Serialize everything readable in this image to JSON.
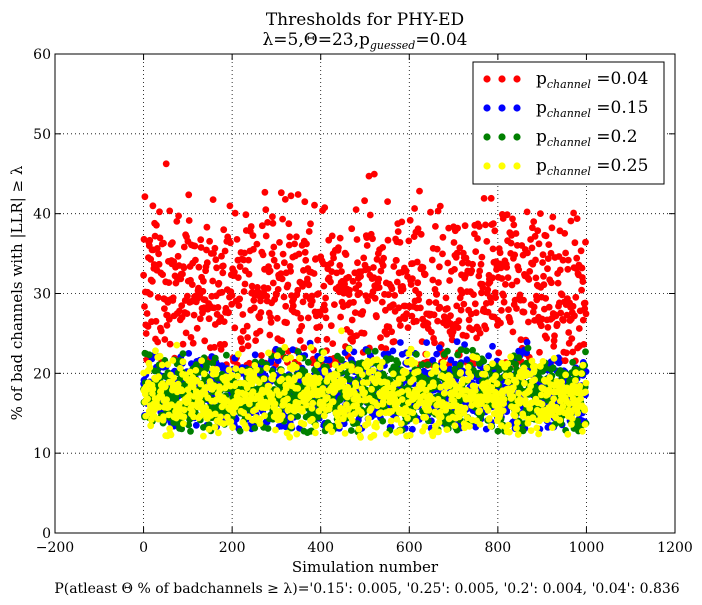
{
  "chart_data": {
    "type": "scatter",
    "title": "Thresholds for PHY-ED",
    "subtitle": "λ=5,Θ=23,p_guessed=0.04",
    "subtitle_parts": {
      "lead": "λ=5,Θ=23,p",
      "sub": "guessed",
      "tail": "=0.04"
    },
    "xlabel": "Simulation number",
    "ylabel": "% of bad channels with |LLR| ≥ λ",
    "footnote": "P(atleast Θ % of badchannels ≥ λ)='0.15': 0.005, '0.25': 0.005, '0.2': 0.004, '0.04': 0.836",
    "xlim": [
      -200,
      1200
    ],
    "ylim": [
      0,
      60
    ],
    "x_ticks": [
      -200,
      0,
      200,
      400,
      600,
      800,
      1000,
      1200
    ],
    "y_ticks": [
      0,
      10,
      20,
      30,
      40,
      50,
      60
    ],
    "grid": true,
    "legend_position": "top-right",
    "n_points_per_series": 1000,
    "series": [
      {
        "name": "p_channel =0.04",
        "legend": {
          "lead": "p",
          "sub": "channel",
          "tail": " =0.04"
        },
        "color": "#ff0000",
        "typical_range": [
          21,
          42
        ],
        "center": 30.5,
        "max": 49.5,
        "min": 21
      },
      {
        "name": "p_channel =0.15",
        "legend": {
          "lead": "p",
          "sub": "channel",
          "tail": " =0.15"
        },
        "color": "#0000ff",
        "typical_range": [
          13,
          22.5
        ],
        "center": 17.8,
        "max": 24,
        "min": 12.9
      },
      {
        "name": "p_channel =0.2",
        "legend": {
          "lead": "p",
          "sub": "channel",
          "tail": " =0.2"
        },
        "color": "#008000",
        "typical_range": [
          13,
          22.5
        ],
        "center": 17.6,
        "max": 23.5,
        "min": 12.5
      },
      {
        "name": "p_channel =0.25",
        "legend": {
          "lead": "p",
          "sub": "channel",
          "tail": " =0.25"
        },
        "color": "#ffff00",
        "typical_range": [
          12.5,
          22
        ],
        "center": 17.2,
        "max": 27.8,
        "min": 11.8
      }
    ]
  }
}
